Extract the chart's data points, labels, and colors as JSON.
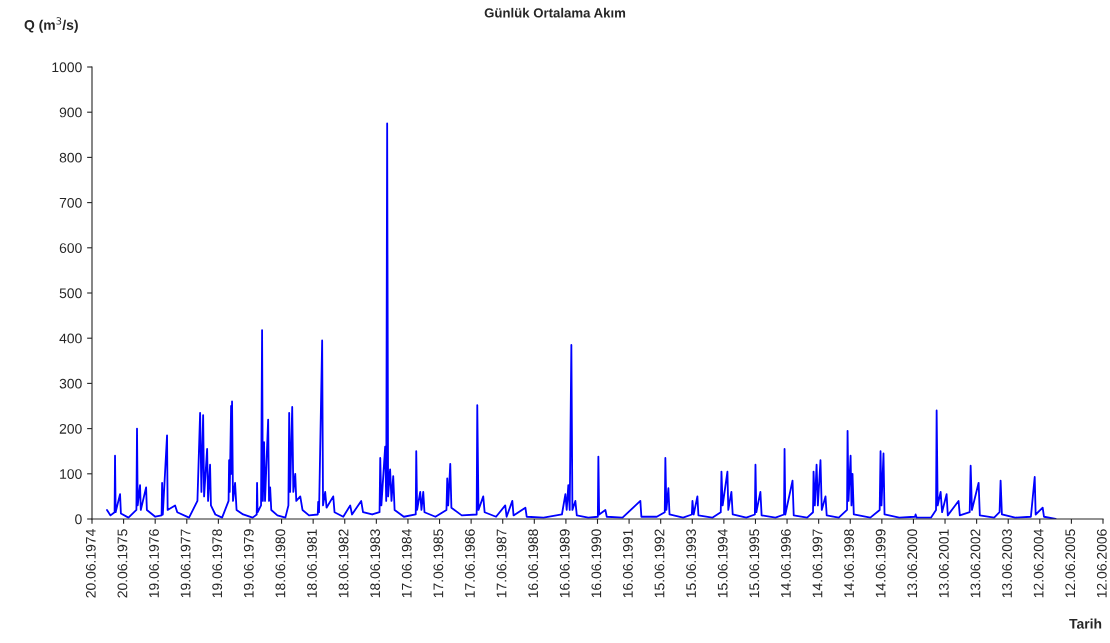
{
  "chart_data": {
    "type": "line",
    "title": "Günlük Ortalama Akım",
    "xlabel": "Tarih",
    "ylabel": "Q (m$^{3}$/s)",
    "xlim": [
      "1974-06-20",
      "2006-06-12"
    ],
    "xticks": [
      {
        "value": "1974-06-20",
        "label": "20.06.1974"
      },
      {
        "value": "1975-06-20",
        "label": "20.06.1975"
      },
      {
        "value": "1976-06-19",
        "label": "19.06.1976"
      },
      {
        "value": "1977-06-19",
        "label": "19.06.1977"
      },
      {
        "value": "1978-06-19",
        "label": "19.06.1978"
      },
      {
        "value": "1979-06-19",
        "label": "19.06.1979"
      },
      {
        "value": "1980-06-18",
        "label": "18.06.1980"
      },
      {
        "value": "1981-06-18",
        "label": "18.06.1981"
      },
      {
        "value": "1982-06-18",
        "label": "18.06.1982"
      },
      {
        "value": "1983-06-18",
        "label": "18.06.1983"
      },
      {
        "value": "1984-06-17",
        "label": "17.06.1984"
      },
      {
        "value": "1985-06-17",
        "label": "17.06.1985"
      },
      {
        "value": "1986-06-17",
        "label": "17.06.1986"
      },
      {
        "value": "1987-06-17",
        "label": "17.06.1987"
      },
      {
        "value": "1988-06-16",
        "label": "16.06.1988"
      },
      {
        "value": "1989-06-16",
        "label": "16.06.1989"
      },
      {
        "value": "1990-06-16",
        "label": "16.06.1990"
      },
      {
        "value": "1991-06-16",
        "label": "16.06.1991"
      },
      {
        "value": "1992-06-15",
        "label": "15.06.1992"
      },
      {
        "value": "1993-06-15",
        "label": "15.06.1993"
      },
      {
        "value": "1994-06-15",
        "label": "15.06.1994"
      },
      {
        "value": "1995-06-15",
        "label": "15.06.1995"
      },
      {
        "value": "1996-06-14",
        "label": "14.06.1996"
      },
      {
        "value": "1997-06-14",
        "label": "14.06.1997"
      },
      {
        "value": "1998-06-14",
        "label": "14.06.1998"
      },
      {
        "value": "1999-06-14",
        "label": "14.06.1999"
      },
      {
        "value": "2000-06-13",
        "label": "13.06.2000"
      },
      {
        "value": "2001-06-13",
        "label": "13.06.2001"
      },
      {
        "value": "2002-06-13",
        "label": "13.06.2002"
      },
      {
        "value": "2003-06-13",
        "label": "13.06.2003"
      },
      {
        "value": "2004-06-12",
        "label": "12.06.2004"
      },
      {
        "value": "2005-06-12",
        "label": "12.06.2005"
      },
      {
        "value": "2006-06-12",
        "label": "12.06.2006"
      }
    ],
    "ylim": [
      0,
      1000
    ],
    "yticks": [
      0,
      100,
      200,
      300,
      400,
      500,
      600,
      700,
      800,
      900,
      1000
    ],
    "grid": false,
    "legend": false,
    "marker": "none",
    "line_style": "solid",
    "series": [
      {
        "color": "#0000ff",
        "x": [
          "1974-12-10",
          "1975-01-20",
          "1975-03-08",
          "1975-03-13",
          "1975-03-20",
          "1975-05-10",
          "1975-05-20",
          "1975-08-15",
          "1975-11-15",
          "1975-11-22",
          "1975-11-30",
          "1975-12-27",
          "1976-01-05",
          "1976-03-06",
          "1976-03-15",
          "1976-06-20",
          "1976-09-01",
          "1976-09-07",
          "1976-09-15",
          "1976-11-03",
          "1976-11-10",
          "1977-02-04",
          "1977-03-01",
          "1977-07-15",
          "1977-10-20",
          "1977-11-20",
          "1977-12-05",
          "1977-12-25",
          "1978-01-05",
          "1978-02-09",
          "1978-02-20",
          "1978-03-15",
          "1978-03-25",
          "1978-05-15",
          "1978-08-01",
          "1978-10-15",
          "1978-10-21",
          "1978-10-28",
          "1978-11-13",
          "1978-11-18",
          "1978-11-24",
          "1978-12-05",
          "1978-12-29",
          "1979-01-15",
          "1979-04-01",
          "1979-07-20",
          "1979-09-05",
          "1979-09-09",
          "1979-09-15",
          "1979-10-25",
          "1979-11-06",
          "1979-11-15",
          "1979-11-29",
          "1979-12-10",
          "1980-01-15",
          "1980-01-25",
          "1980-02-07",
          "1980-02-20",
          "1980-05-01",
          "1980-08-01",
          "1980-09-05",
          "1980-09-14",
          "1980-09-25",
          "1980-10-19",
          "1980-11-01",
          "1980-11-23",
          "1980-12-05",
          "1981-01-20",
          "1981-02-15",
          "1981-05-01",
          "1981-08-10",
          "1981-08-15",
          "1981-08-25",
          "1981-09-30",
          "1981-10-10",
          "1981-11-04",
          "1981-11-20",
          "1982-02-05",
          "1982-02-20",
          "1982-06-01",
          "1982-08-20",
          "1982-09-10",
          "1982-12-25",
          "1983-01-15",
          "1983-05-01",
          "1983-07-25",
          "1983-08-02",
          "1983-08-15",
          "1983-09-28",
          "1983-10-10",
          "1983-10-21",
          "1983-11-01",
          "1983-11-24",
          "1983-12-10",
          "1983-12-30",
          "1984-01-15",
          "1984-05-01",
          "1984-09-15",
          "1984-09-21",
          "1984-10-01",
          "1984-11-06",
          "1984-11-20",
          "1984-12-11",
          "1984-12-25",
          "1985-05-01",
          "1985-09-05",
          "1985-09-14",
          "1985-09-25",
          "1985-10-19",
          "1985-11-01",
          "1986-03-01",
          "1986-08-20",
          "1986-08-27",
          "1986-09-10",
          "1986-11-04",
          "1986-11-20",
          "1987-04-01",
          "1987-07-16",
          "1987-08-01",
          "1987-10-06",
          "1987-10-20",
          "1988-03-05",
          "1988-03-20",
          "1988-10-01",
          "1989-05-01",
          "1989-06-10",
          "1989-06-25",
          "1989-07-14",
          "1989-07-30",
          "1989-08-18",
          "1989-08-30",
          "1989-10-03",
          "1989-10-20",
          "1990-03-01",
          "1990-06-20",
          "1990-06-26",
          "1990-07-05",
          "1990-09-15",
          "1990-10-01",
          "1991-04-01",
          "1991-10-24",
          "1991-11-05",
          "1992-05-01",
          "1992-08-01",
          "1992-08-08",
          "1992-08-20",
          "1992-09-12",
          "1992-09-25",
          "1993-03-01",
          "1993-06-10",
          "1993-06-17",
          "1993-07-01",
          "1993-08-13",
          "1993-08-25",
          "1994-02-01",
          "1994-05-10",
          "1994-05-18",
          "1994-06-01",
          "1994-07-26",
          "1994-08-05",
          "1994-09-10",
          "1994-09-25",
          "1995-03-01",
          "1995-06-08",
          "1995-06-15",
          "1995-06-25",
          "1995-08-11",
          "1995-08-25",
          "1996-02-01",
          "1996-05-10",
          "1996-05-16",
          "1996-05-25",
          "1996-08-16",
          "1996-08-30",
          "1997-02-01",
          "1997-04-10",
          "1997-04-16",
          "1997-05-01",
          "1997-05-21",
          "1997-06-05",
          "1997-07-05",
          "1997-07-20",
          "1997-09-01",
          "1997-09-15",
          "1998-02-01",
          "1998-05-08",
          "1998-05-14",
          "1998-05-25",
          "1998-06-18",
          "1998-06-28",
          "1998-07-10",
          "1998-07-25",
          "1999-02-01",
          "1999-05-20",
          "1999-05-30",
          "1999-06-10",
          "1999-07-03",
          "1999-07-15",
          "2000-01-01",
          "2000-07-01",
          "2000-07-08",
          "2000-07-20",
          "2001-01-01",
          "2001-03-01",
          "2001-03-08",
          "2001-03-20",
          "2001-04-23",
          "2001-05-10",
          "2001-07-01",
          "2001-07-15",
          "2001-11-16",
          "2001-12-01",
          "2002-03-25",
          "2002-04-05",
          "2002-04-20",
          "2002-07-06",
          "2002-07-20",
          "2003-01-01",
          "2003-03-05",
          "2003-03-17",
          "2003-04-01",
          "2003-09-01",
          "2004-03-01",
          "2004-04-14",
          "2004-04-25",
          "2004-07-15",
          "2004-07-30",
          "2004-12-12"
        ],
        "values": [
          20,
          8,
          15,
          140,
          15,
          55,
          12,
          3,
          20,
          200,
          30,
          75,
          20,
          70,
          20,
          5,
          8,
          80,
          10,
          185,
          20,
          30,
          15,
          3,
          40,
          235,
          60,
          230,
          50,
          155,
          40,
          120,
          30,
          10,
          3,
          40,
          130,
          60,
          250,
          100,
          260,
          40,
          80,
          20,
          10,
          3,
          10,
          80,
          15,
          30,
          418,
          40,
          170,
          40,
          220,
          40,
          70,
          20,
          8,
          3,
          30,
          235,
          60,
          248,
          60,
          100,
          40,
          50,
          20,
          8,
          10,
          38,
          15,
          395,
          30,
          60,
          25,
          50,
          15,
          5,
          30,
          10,
          40,
          15,
          10,
          15,
          135,
          30,
          160,
          40,
          875,
          50,
          110,
          40,
          95,
          20,
          5,
          10,
          150,
          20,
          60,
          20,
          60,
          15,
          5,
          20,
          90,
          30,
          122,
          25,
          8,
          10,
          252,
          20,
          50,
          15,
          5,
          30,
          5,
          40,
          8,
          25,
          5,
          3,
          10,
          55,
          20,
          75,
          20,
          385,
          20,
          40,
          8,
          3,
          5,
          138,
          10,
          20,
          5,
          3,
          40,
          5,
          5,
          15,
          135,
          20,
          68,
          10,
          3,
          10,
          40,
          10,
          50,
          8,
          3,
          15,
          105,
          30,
          105,
          20,
          60,
          10,
          3,
          10,
          120,
          15,
          60,
          8,
          3,
          10,
          155,
          10,
          85,
          8,
          3,
          15,
          105,
          30,
          120,
          30,
          130,
          20,
          50,
          8,
          3,
          20,
          195,
          40,
          140,
          30,
          100,
          10,
          3,
          20,
          150,
          30,
          145,
          10,
          3,
          5,
          10,
          3,
          3,
          20,
          240,
          30,
          60,
          15,
          55,
          8,
          40,
          8,
          15,
          118,
          20,
          80,
          8,
          3,
          15,
          85,
          10,
          3,
          5,
          93,
          10,
          25,
          5,
          0
        ]
      }
    ]
  }
}
